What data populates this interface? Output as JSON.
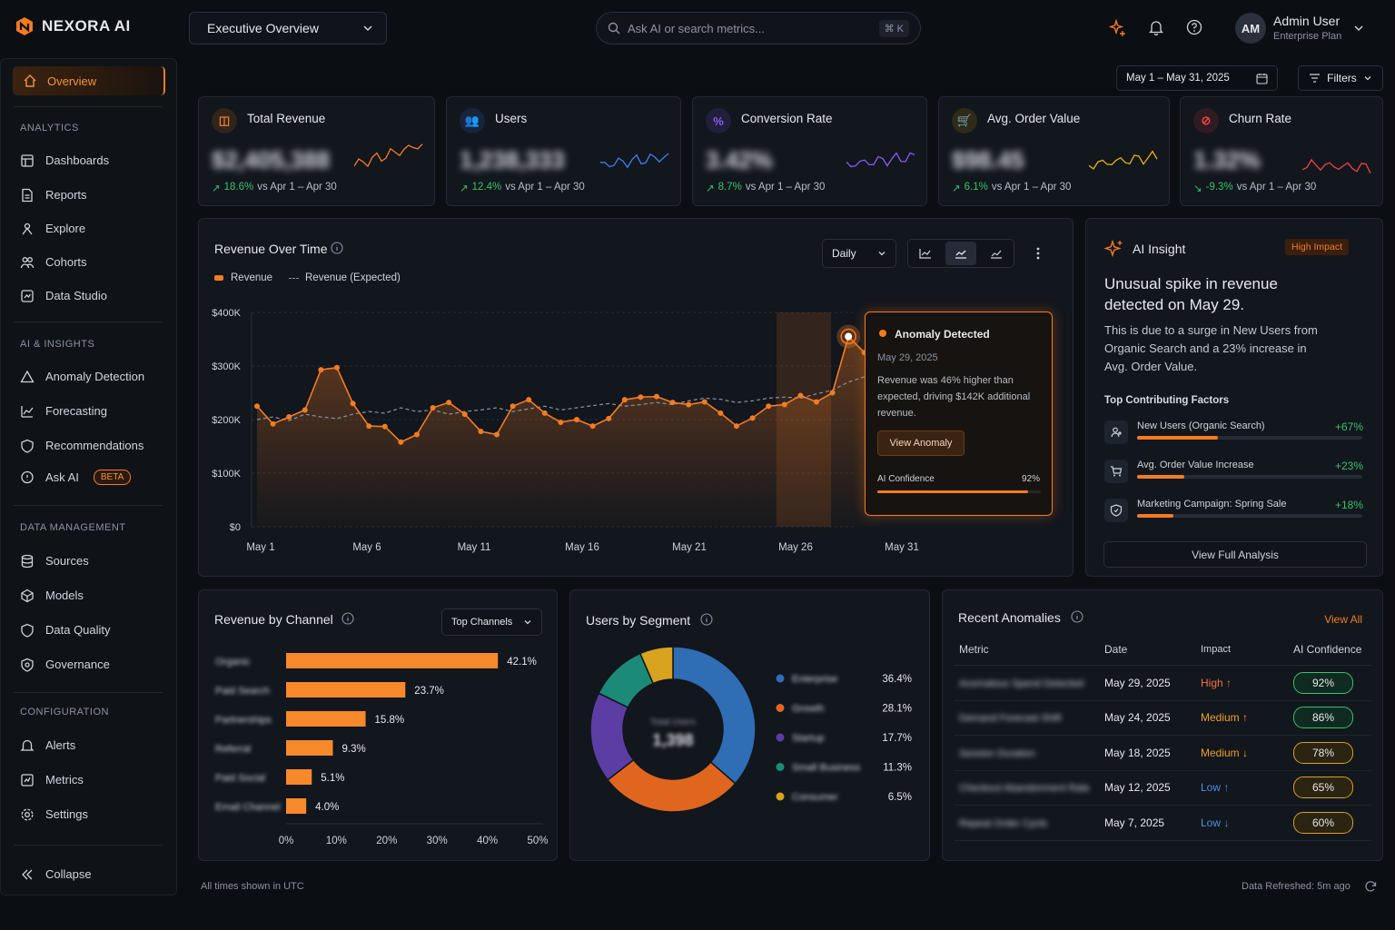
{
  "brand": {
    "name": "NEXORA AI"
  },
  "topbar": {
    "view_selector": "Executive Overview",
    "search_placeholder": "Ask AI or search metrics...",
    "shortcut": "⌘ K",
    "user": {
      "initials": "AM",
      "name": "Admin User",
      "plan": "Enterprise Plan"
    }
  },
  "sidebar": {
    "active": "Overview",
    "sections": [
      {
        "label": "ANALYTICS",
        "items": [
          "Dashboards",
          "Reports",
          "Explore",
          "Cohorts",
          "Data Studio"
        ]
      },
      {
        "label": "AI & INSIGHTS",
        "items": [
          "Anomaly Detection",
          "Forecasting",
          "Recommendations",
          "Ask AI"
        ]
      },
      {
        "label": "DATA MANAGEMENT",
        "items": [
          "Sources",
          "Models",
          "Data Quality",
          "Governance"
        ]
      },
      {
        "label": "CONFIGURATION",
        "items": [
          "Alerts",
          "Metrics",
          "Settings"
        ]
      }
    ],
    "beta_badge": "BETA",
    "collapse": "Collapse"
  },
  "toolbar": {
    "date_range": "May 1 – May 31, 2025",
    "filters": "Filters"
  },
  "kpis": [
    {
      "title": "Total Revenue",
      "value": "$2,405,388",
      "delta": "18.6%",
      "compare": "vs Apr 1 – Apr 30",
      "direction": "up",
      "color": "#f47c20"
    },
    {
      "title": "Users",
      "value": "1,238,333",
      "delta": "12.4%",
      "compare": "vs Apr 1 – Apr 30",
      "direction": "up",
      "color": "#3b82f6"
    },
    {
      "title": "Conversion Rate",
      "value": "3.42%",
      "delta": "8.7%",
      "compare": "vs Apr 1 – Apr 30",
      "direction": "up",
      "color": "#8b5cf6"
    },
    {
      "title": "Avg. Order Value",
      "value": "$98.45",
      "delta": "6.1%",
      "compare": "vs Apr 1 – Apr 30",
      "direction": "up",
      "color": "#eab308"
    },
    {
      "title": "Churn Rate",
      "value": "1.32%",
      "delta": "-9.3%",
      "compare": "vs Apr 1 – Apr 30",
      "direction": "down",
      "color": "#ef4444"
    }
  ],
  "revenue_chart": {
    "title": "Revenue Over Time",
    "granularity": "Daily",
    "legend": [
      "Revenue",
      "Revenue (Expected)"
    ]
  },
  "anomaly_popup": {
    "title": "Anomaly Detected",
    "date": "May 29, 2025",
    "text": "Revenue was 46% higher than expected, driving $142K additional revenue.",
    "button": "View Anomaly",
    "confidence_label": "AI Confidence",
    "confidence": "92%",
    "confidence_value": 0.92
  },
  "ai_insight": {
    "title": "AI Insight",
    "badge": "High Impact",
    "headline": "Unusual spike in revenue detected on May 29.",
    "body": "This is due to a surge in New Users from Organic Search and a 23% increase in Avg. Order Value.",
    "factors_title": "Top Contributing Factors",
    "factors": [
      {
        "label": "New Users (Organic Search)",
        "value": "+67%",
        "fill": 0.36
      },
      {
        "label": "Avg. Order Value Increase",
        "value": "+23%",
        "fill": 0.21
      },
      {
        "label": "Marketing Campaign: Spring Sale",
        "value": "+18%",
        "fill": 0.16
      }
    ],
    "button": "View Full Analysis"
  },
  "channel_panel": {
    "title": "Revenue by Channel",
    "dropdown": "Top Channels"
  },
  "segment_panel": {
    "title": "Users by Segment",
    "center_label": "Total Users",
    "center_value": "1,398"
  },
  "anomalies_panel": {
    "title": "Recent Anomalies",
    "view_all": "View All",
    "columns": [
      "Metric",
      "Date",
      "Impact",
      "AI Confidence"
    ],
    "rows": [
      {
        "metric": "Anomalous Spend Detected",
        "date": "May 29, 2025",
        "impact": "High",
        "dir": "↑",
        "confidence": "92%",
        "level": "high"
      },
      {
        "metric": "Demand Forecast Shift",
        "date": "May 24, 2025",
        "impact": "Medium",
        "dir": "↑",
        "confidence": "86%",
        "level": "medium"
      },
      {
        "metric": "Session Duration",
        "date": "May 18, 2025",
        "impact": "Medium",
        "dir": "↓",
        "confidence": "78%",
        "level": "medium"
      },
      {
        "metric": "Checkout Abandonment Rate",
        "date": "May 12, 2025",
        "impact": "Low",
        "dir": "↑",
        "confidence": "65%",
        "level": "low"
      },
      {
        "metric": "Repeat Order Cycle",
        "date": "May 7, 2025",
        "impact": "Low",
        "dir": "↓",
        "confidence": "60%",
        "level": "low"
      }
    ]
  },
  "footer": {
    "timezone": "All times shown in UTC",
    "refreshed": "Data Refreshed: 5m ago"
  },
  "chart_data": [
    {
      "type": "line",
      "title": "Revenue Over Time",
      "xlabel": "",
      "ylabel": "",
      "x_ticks": [
        "May 1",
        "May 6",
        "May 11",
        "May 16",
        "May 21",
        "May 26",
        "May 31"
      ],
      "y_ticks": [
        "$0",
        "$100K",
        "$200K",
        "$300K",
        "$400K"
      ],
      "ylim": [
        0,
        400000
      ],
      "series": [
        {
          "name": "Revenue",
          "values": [
            225000,
            192000,
            205000,
            218000,
            293000,
            297000,
            230000,
            188000,
            187000,
            158000,
            172000,
            222000,
            232000,
            210000,
            178000,
            172000,
            225000,
            237000,
            212000,
            195000,
            200000,
            188000,
            202000,
            237000,
            242000,
            243000,
            232000,
            228000,
            233000,
            212000,
            188000,
            203000,
            225000,
            228000,
            245000,
            233000,
            250000,
            355000,
            325000,
            298000
          ]
        },
        {
          "name": "Revenue (Expected)",
          "values": [
            200000,
            205000,
            198000,
            210000,
            205000,
            202000,
            210000,
            215000,
            212000,
            222000,
            215000,
            218000,
            210000,
            215000,
            218000,
            222000,
            215000,
            220000,
            225000,
            218000,
            222000,
            226000,
            230000,
            225000,
            228000,
            232000,
            228000,
            235000,
            240000,
            238000,
            232000,
            235000,
            240000,
            242000,
            240000,
            248000,
            255000,
            270000,
            280000,
            275000
          ]
        }
      ],
      "annotation": {
        "x": "May 29",
        "label": "Anomaly Detected"
      }
    },
    {
      "type": "bar",
      "title": "Revenue by Channel",
      "orientation": "horizontal",
      "categories": [
        "Organic",
        "Paid Search",
        "Partnerships",
        "Referral",
        "Paid Social",
        "Email Channel"
      ],
      "values": [
        42.1,
        23.7,
        15.8,
        9.3,
        5.1,
        4.0
      ],
      "value_labels": [
        "42.1%",
        "23.7%",
        "15.8%",
        "9.3%",
        "5.1%",
        "4.0%"
      ],
      "x_ticks": [
        "0%",
        "10%",
        "20%",
        "30%",
        "40%",
        "50%"
      ],
      "xlim": [
        0,
        50
      ]
    },
    {
      "type": "pie",
      "title": "Users by Segment",
      "donut": true,
      "categories": [
        "Enterprise",
        "Growth",
        "Startup",
        "Small Business",
        "Consumer"
      ],
      "values": [
        36.4,
        28.1,
        17.7,
        11.3,
        6.5
      ],
      "value_labels": [
        "36.4%",
        "28.1%",
        "17.7%",
        "11.3%",
        "6.5%"
      ],
      "colors": [
        "#2f6db5",
        "#e0661f",
        "#5b3da3",
        "#1b8a78",
        "#d9a21f"
      ]
    }
  ]
}
